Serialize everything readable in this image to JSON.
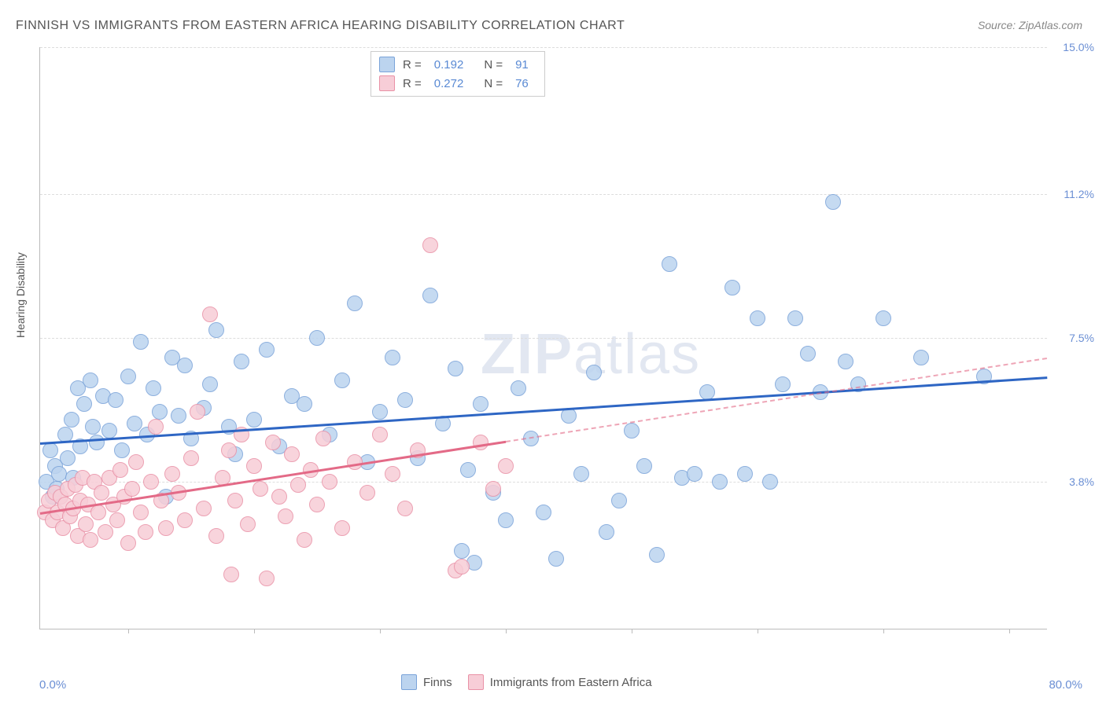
{
  "title": "FINNISH VS IMMIGRANTS FROM EASTERN AFRICA HEARING DISABILITY CORRELATION CHART",
  "source_label": "Source: ",
  "source_name": "ZipAtlas.com",
  "watermark_a": "ZIP",
  "watermark_b": "atlas",
  "y_axis_label": "Hearing Disability",
  "chart": {
    "type": "scatter",
    "xlim": [
      0,
      80
    ],
    "ylim": [
      0,
      15
    ],
    "x_min_label": "0.0%",
    "x_max_label": "80.0%",
    "y_ticks": [
      3.8,
      7.5,
      11.2,
      15.0
    ],
    "y_tick_labels": [
      "3.8%",
      "7.5%",
      "11.2%",
      "15.0%"
    ],
    "x_tick_positions": [
      7,
      17,
      27,
      37,
      47,
      57,
      67,
      77
    ],
    "background_color": "#ffffff",
    "grid_color": "#dddddd",
    "axis_color": "#bbbbbb",
    "tick_label_color": "#6b8fd4",
    "point_radius": 9,
    "series": [
      {
        "name": "Finns",
        "fill": "#bcd4ef",
        "stroke": "#7aa3d9",
        "trend_color": "#2e66c4",
        "trend_start": [
          0,
          4.8
        ],
        "trend_end": [
          80,
          6.5
        ],
        "trend_dashed_from_x": null,
        "R": "0.192",
        "N": "91",
        "points": [
          [
            0.5,
            3.8
          ],
          [
            0.8,
            4.6
          ],
          [
            1.0,
            3.4
          ],
          [
            1.2,
            4.2
          ],
          [
            1.3,
            3.6
          ],
          [
            1.5,
            4.0
          ],
          [
            2.0,
            5.0
          ],
          [
            2.2,
            4.4
          ],
          [
            2.5,
            5.4
          ],
          [
            2.6,
            3.9
          ],
          [
            3.0,
            6.2
          ],
          [
            3.2,
            4.7
          ],
          [
            3.5,
            5.8
          ],
          [
            4.0,
            6.4
          ],
          [
            4.2,
            5.2
          ],
          [
            4.5,
            4.8
          ],
          [
            5.0,
            6.0
          ],
          [
            5.5,
            5.1
          ],
          [
            6.0,
            5.9
          ],
          [
            6.5,
            4.6
          ],
          [
            7.0,
            6.5
          ],
          [
            7.5,
            5.3
          ],
          [
            8.0,
            7.4
          ],
          [
            8.5,
            5.0
          ],
          [
            9.0,
            6.2
          ],
          [
            9.5,
            5.6
          ],
          [
            10.0,
            3.4
          ],
          [
            10.5,
            7.0
          ],
          [
            11.0,
            5.5
          ],
          [
            11.5,
            6.8
          ],
          [
            12.0,
            4.9
          ],
          [
            13.0,
            5.7
          ],
          [
            13.5,
            6.3
          ],
          [
            14.0,
            7.7
          ],
          [
            15.0,
            5.2
          ],
          [
            15.5,
            4.5
          ],
          [
            16.0,
            6.9
          ],
          [
            17.0,
            5.4
          ],
          [
            18.0,
            7.2
          ],
          [
            19.0,
            4.7
          ],
          [
            20.0,
            6.0
          ],
          [
            21.0,
            5.8
          ],
          [
            22.0,
            7.5
          ],
          [
            23.0,
            5.0
          ],
          [
            24.0,
            6.4
          ],
          [
            25.0,
            8.4
          ],
          [
            26.0,
            4.3
          ],
          [
            27.0,
            5.6
          ],
          [
            28.0,
            7.0
          ],
          [
            29.0,
            5.9
          ],
          [
            30.0,
            4.4
          ],
          [
            31.0,
            8.6
          ],
          [
            32.0,
            5.3
          ],
          [
            33.0,
            6.7
          ],
          [
            33.5,
            2.0
          ],
          [
            34.0,
            4.1
          ],
          [
            34.5,
            1.7
          ],
          [
            35.0,
            5.8
          ],
          [
            36.0,
            3.5
          ],
          [
            37.0,
            2.8
          ],
          [
            38.0,
            6.2
          ],
          [
            39.0,
            4.9
          ],
          [
            40.0,
            3.0
          ],
          [
            41.0,
            1.8
          ],
          [
            42.0,
            5.5
          ],
          [
            43.0,
            4.0
          ],
          [
            44.0,
            6.6
          ],
          [
            45.0,
            2.5
          ],
          [
            46.0,
            3.3
          ],
          [
            47.0,
            5.1
          ],
          [
            48.0,
            4.2
          ],
          [
            49.0,
            1.9
          ],
          [
            50.0,
            9.4
          ],
          [
            51.0,
            3.9
          ],
          [
            52.0,
            4.0
          ],
          [
            53.0,
            6.1
          ],
          [
            54.0,
            3.8
          ],
          [
            55.0,
            8.8
          ],
          [
            56.0,
            4.0
          ],
          [
            57.0,
            8.0
          ],
          [
            58.0,
            3.8
          ],
          [
            59.0,
            6.3
          ],
          [
            60.0,
            8.0
          ],
          [
            61.0,
            7.1
          ],
          [
            62.0,
            6.1
          ],
          [
            63.0,
            11.0
          ],
          [
            64.0,
            6.9
          ],
          [
            65.0,
            6.3
          ],
          [
            67.0,
            8.0
          ],
          [
            70.0,
            7.0
          ],
          [
            75.0,
            6.5
          ]
        ]
      },
      {
        "name": "Immigrants from Eastern Africa",
        "fill": "#f7cdd7",
        "stroke": "#e991a6",
        "trend_color": "#e36a87",
        "trend_start": [
          0,
          3.0
        ],
        "trend_end": [
          80,
          7.0
        ],
        "trend_dashed_from_x": 37,
        "R": "0.272",
        "N": "76",
        "points": [
          [
            0.4,
            3.0
          ],
          [
            0.7,
            3.3
          ],
          [
            1.0,
            2.8
          ],
          [
            1.2,
            3.5
          ],
          [
            1.4,
            3.0
          ],
          [
            1.6,
            3.4
          ],
          [
            1.8,
            2.6
          ],
          [
            2.0,
            3.2
          ],
          [
            2.2,
            3.6
          ],
          [
            2.4,
            2.9
          ],
          [
            2.6,
            3.1
          ],
          [
            2.8,
            3.7
          ],
          [
            3.0,
            2.4
          ],
          [
            3.2,
            3.3
          ],
          [
            3.4,
            3.9
          ],
          [
            3.6,
            2.7
          ],
          [
            3.8,
            3.2
          ],
          [
            4.0,
            2.3
          ],
          [
            4.3,
            3.8
          ],
          [
            4.6,
            3.0
          ],
          [
            4.9,
            3.5
          ],
          [
            5.2,
            2.5
          ],
          [
            5.5,
            3.9
          ],
          [
            5.8,
            3.2
          ],
          [
            6.1,
            2.8
          ],
          [
            6.4,
            4.1
          ],
          [
            6.7,
            3.4
          ],
          [
            7.0,
            2.2
          ],
          [
            7.3,
            3.6
          ],
          [
            7.6,
            4.3
          ],
          [
            8.0,
            3.0
          ],
          [
            8.4,
            2.5
          ],
          [
            8.8,
            3.8
          ],
          [
            9.2,
            5.2
          ],
          [
            9.6,
            3.3
          ],
          [
            10.0,
            2.6
          ],
          [
            10.5,
            4.0
          ],
          [
            11.0,
            3.5
          ],
          [
            11.5,
            2.8
          ],
          [
            12.0,
            4.4
          ],
          [
            12.5,
            5.6
          ],
          [
            13.0,
            3.1
          ],
          [
            13.5,
            8.1
          ],
          [
            14.0,
            2.4
          ],
          [
            14.5,
            3.9
          ],
          [
            15.0,
            4.6
          ],
          [
            15.5,
            3.3
          ],
          [
            16.0,
            5.0
          ],
          [
            16.5,
            2.7
          ],
          [
            17.0,
            4.2
          ],
          [
            17.5,
            3.6
          ],
          [
            18.0,
            1.3
          ],
          [
            18.5,
            4.8
          ],
          [
            19.0,
            3.4
          ],
          [
            19.5,
            2.9
          ],
          [
            20.0,
            4.5
          ],
          [
            20.5,
            3.7
          ],
          [
            21.0,
            2.3
          ],
          [
            21.5,
            4.1
          ],
          [
            22.0,
            3.2
          ],
          [
            22.5,
            4.9
          ],
          [
            23.0,
            3.8
          ],
          [
            24.0,
            2.6
          ],
          [
            25.0,
            4.3
          ],
          [
            26.0,
            3.5
          ],
          [
            27.0,
            5.0
          ],
          [
            28.0,
            4.0
          ],
          [
            29.0,
            3.1
          ],
          [
            30.0,
            4.6
          ],
          [
            31.0,
            9.9
          ],
          [
            33.0,
            1.5
          ],
          [
            35.0,
            4.8
          ],
          [
            36.0,
            3.6
          ],
          [
            37.0,
            4.2
          ],
          [
            33.5,
            1.6
          ],
          [
            15.2,
            1.4
          ]
        ]
      }
    ]
  },
  "stats_labels": {
    "R": "R =",
    "N": "N ="
  },
  "legend": {
    "series1": "Finns",
    "series2": "Immigrants from Eastern Africa"
  }
}
